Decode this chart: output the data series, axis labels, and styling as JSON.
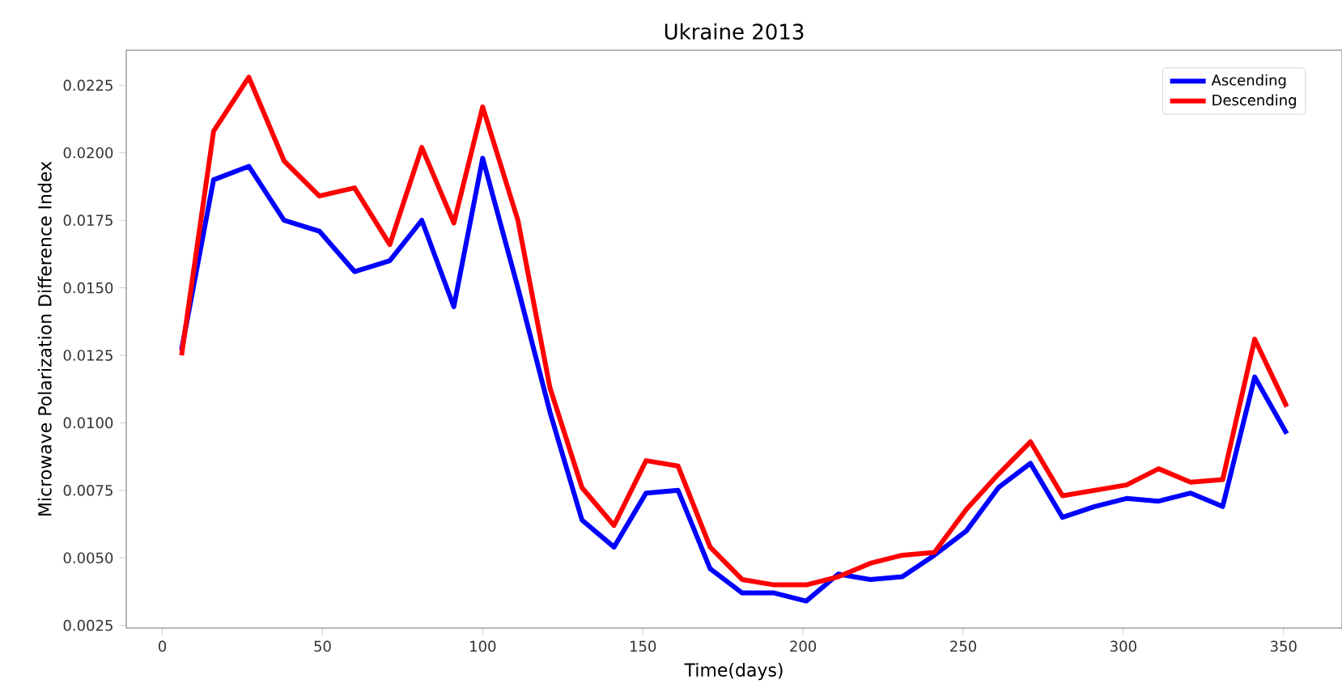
{
  "chart_data": {
    "type": "line",
    "title": "Ukraine 2013",
    "xlabel": "Time(days)",
    "ylabel": "Microwave Polarization Difference Index",
    "x": [
      6,
      16,
      27,
      38,
      49,
      60,
      71,
      81,
      91,
      100,
      111,
      121,
      131,
      141,
      151,
      161,
      171,
      181,
      191,
      201,
      211,
      221,
      231,
      241,
      251,
      261,
      271,
      281,
      291,
      301,
      311,
      321,
      331,
      341,
      351
    ],
    "series": [
      {
        "name": "Ascending",
        "color": "#0000ff",
        "values": [
          0.0127,
          0.019,
          0.0195,
          0.0175,
          0.0171,
          0.0156,
          0.016,
          0.0175,
          0.0143,
          0.0198,
          0.015,
          0.0104,
          0.0064,
          0.0054,
          0.0074,
          0.0075,
          0.0046,
          0.0037,
          0.0037,
          0.0034,
          0.0044,
          0.0042,
          0.0043,
          0.0051,
          0.006,
          0.0076,
          0.0085,
          0.0065,
          0.0069,
          0.0072,
          0.0071,
          0.0074,
          0.0069,
          0.0117,
          0.0096
        ]
      },
      {
        "name": "Descending",
        "color": "#ff0000",
        "values": [
          0.0125,
          0.0208,
          0.0228,
          0.0197,
          0.0184,
          0.0187,
          0.0166,
          0.0202,
          0.0174,
          0.0217,
          0.0175,
          0.0113,
          0.0076,
          0.0062,
          0.0086,
          0.0084,
          0.0054,
          0.0042,
          0.004,
          0.004,
          0.0043,
          0.0048,
          0.0051,
          0.0052,
          0.0068,
          0.0081,
          0.0093,
          0.0073,
          0.0075,
          0.0077,
          0.0083,
          0.0078,
          0.0079,
          0.0131,
          0.0106
        ]
      }
    ],
    "xlim": [
      -11.25,
      368.25
    ],
    "ylim": [
      0.0024,
      0.0238
    ],
    "xticks": [
      0,
      50,
      100,
      150,
      200,
      250,
      300,
      350
    ],
    "yticks": [
      {
        "value": 0.0025,
        "label": "0.0025"
      },
      {
        "value": 0.005,
        "label": "0.0050"
      },
      {
        "value": 0.0075,
        "label": "0.0075"
      },
      {
        "value": 0.01,
        "label": "0.0100"
      },
      {
        "value": 0.0125,
        "label": "0.0125"
      },
      {
        "value": 0.015,
        "label": "0.0150"
      },
      {
        "value": 0.0175,
        "label": "0.0175"
      },
      {
        "value": 0.02,
        "label": "0.0200"
      },
      {
        "value": 0.0225,
        "label": "0.0225"
      }
    ],
    "legend": "top right",
    "grid": false,
    "marker": "none",
    "line_style": "solid"
  }
}
